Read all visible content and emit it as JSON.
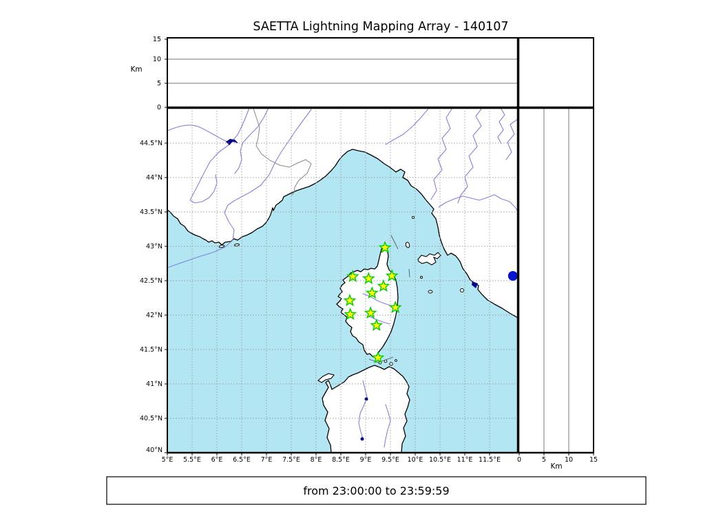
{
  "title": "SAETTA Lightning Mapping Array - 140107",
  "footer": {
    "text": "from 23:00:00 to 23:59:59"
  },
  "axes": {
    "altitude_label": "Km",
    "altitude_tick_labels": [
      "0",
      "5",
      "10",
      "15"
    ],
    "lon_tick_labels": [
      "5°E",
      "5.5°E",
      "6°E",
      "6.5°E",
      "7°E",
      "7.5°E",
      "8°E",
      "8.5°E",
      "9°E",
      "9.5°E",
      "10°E",
      "10.5°E",
      "11°E",
      "11.5°E"
    ],
    "lat_tick_labels": [
      "40°N",
      "40.5°N",
      "41°N",
      "41.5°N",
      "42°N",
      "42.5°N",
      "43°N",
      "43.5°N",
      "44°N",
      "44.5°N"
    ]
  },
  "colors": {
    "sea": "#b2e6f2",
    "land": "#ffffff",
    "coastline": "#000000",
    "river": "#8181e0",
    "lake": "#000090",
    "grid": "#999999",
    "panel_gridline": "#777777",
    "country_border": "#888888",
    "station_fill": "#ffff00",
    "station_edge": "#00cc00",
    "event_dot": "#0015cd"
  },
  "chart_data": {
    "type": "scatter",
    "title": "SAETTA Lightning Mapping Array - 140107",
    "time_window": "from 23:00:00 to 23:59:59",
    "map_extent": {
      "lon_min": 5,
      "lon_max": 12.07,
      "lat_min": 40,
      "lat_max": 45.01
    },
    "altitude_extent_km": [
      0,
      15
    ],
    "lon_gridlines_deg_e": [
      5,
      5.5,
      6,
      6.5,
      7,
      7.5,
      8,
      8.5,
      9,
      9.5,
      10,
      10.5,
      11,
      11.5
    ],
    "lat_gridlines_deg_n": [
      40,
      40.5,
      41,
      41.5,
      42,
      42.5,
      43,
      43.5,
      44,
      44.5
    ],
    "stations_lon_lat": [
      [
        9.39,
        42.98
      ],
      [
        8.74,
        42.56
      ],
      [
        9.06,
        42.53
      ],
      [
        9.53,
        42.57
      ],
      [
        9.36,
        42.42
      ],
      [
        9.13,
        42.32
      ],
      [
        8.68,
        42.21
      ],
      [
        8.69,
        42.01
      ],
      [
        9.1,
        42.03
      ],
      [
        9.6,
        42.11
      ],
      [
        9.22,
        41.85
      ],
      [
        9.25,
        41.38
      ]
    ],
    "event_points_lon_lat": [
      [
        11.97,
        42.57
      ]
    ],
    "top_panel": {
      "ylabel": "Km",
      "yticks_km": [
        0,
        5,
        10,
        15
      ],
      "points": []
    },
    "right_panel": {
      "xlabel": "Km",
      "xticks_km": [
        0,
        5,
        10,
        15
      ],
      "points": []
    }
  }
}
